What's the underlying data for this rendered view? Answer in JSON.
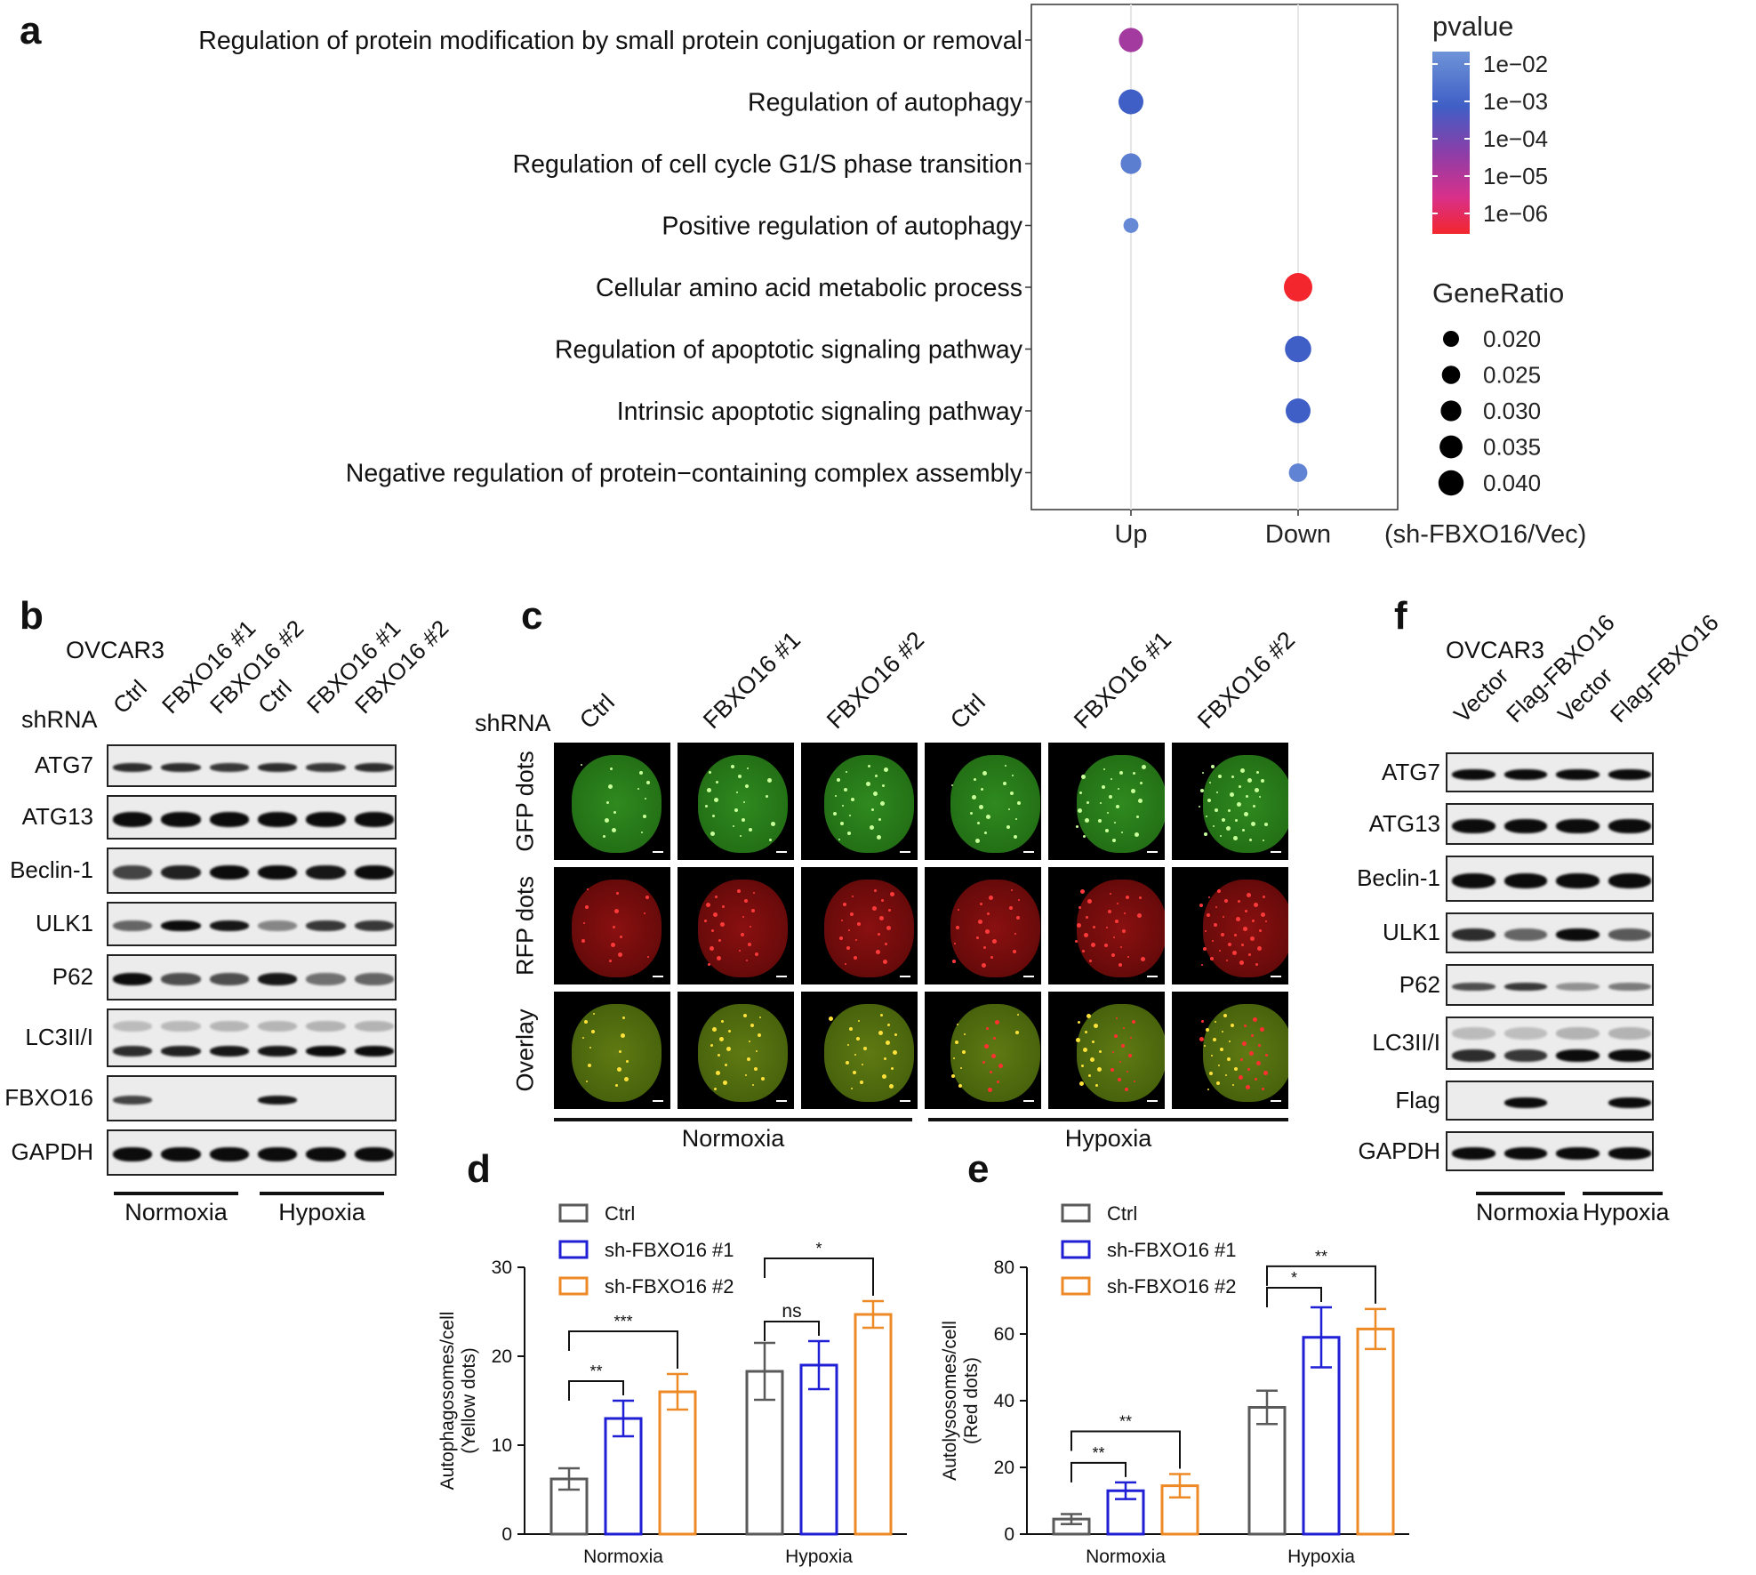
{
  "panel_labels": {
    "a": "a",
    "b": "b",
    "c": "c",
    "d": "d",
    "e": "e",
    "f": "f"
  },
  "panel_a": {
    "x_labels": [
      "Up",
      "Down"
    ],
    "x_axis_label": "(sh-FBXO16/Vec)",
    "legend_pvalue_title": "pvalue",
    "pvalue_ticks": [
      "1e−02",
      "1e−03",
      "1e−04",
      "1e−05",
      "1e−06"
    ],
    "legend_generatio_title": "GeneRatio",
    "generatio_ticks": [
      "0.020",
      "0.025",
      "0.030",
      "0.035",
      "0.040"
    ],
    "colors": {
      "low": "#e8262a",
      "mid": "#8a3ea8",
      "high": "#4e7fd0"
    }
  },
  "chart_data": [
    {
      "type": "scatter",
      "panel": "a",
      "terms": [
        "Regulation of protein modification by small protein conjugation or removal",
        "Regulation of autophagy",
        "Regulation of cell cycle G1/S phase transition",
        "Positive regulation of autophagy",
        "Cellular amino acid metabolic process",
        "Regulation of apoptotic signaling pathway",
        "Intrinsic apoptotic signaling pathway",
        "Negative regulation of protein−containing complex assembly"
      ],
      "groups": [
        "Up",
        "Up",
        "Up",
        "Up",
        "Down",
        "Down",
        "Down",
        "Down"
      ],
      "gene_ratio": [
        0.034,
        0.035,
        0.029,
        0.021,
        0.04,
        0.037,
        0.035,
        0.026
      ],
      "log10_pvalue": [
        -4.3,
        -3.0,
        -2.4,
        -2.2,
        -6.0,
        -3.0,
        -3.0,
        -2.3
      ],
      "x_label": "(sh-FBXO16/Vec)"
    },
    {
      "type": "bar",
      "panel": "d",
      "categories": [
        "Normoxia",
        "Hypoxia"
      ],
      "series": [
        {
          "name": "Ctrl",
          "values": [
            6.2,
            18.3
          ],
          "errors": [
            1.2,
            3.2
          ]
        },
        {
          "name": "sh-FBXO16 #1",
          "values": [
            13.0,
            19.0
          ],
          "errors": [
            2.0,
            2.7
          ]
        },
        {
          "name": "sh-FBXO16 #2",
          "values": [
            16.0,
            24.7
          ],
          "errors": [
            2.0,
            1.5
          ]
        }
      ],
      "ylabel": "Autophagosomes/cell\n(Yellow dots)",
      "ylim": [
        0,
        30
      ],
      "yticks": [
        "0",
        "10",
        "20",
        "30"
      ],
      "significance": [
        {
          "group": "Normoxia",
          "from": 0,
          "to": 1,
          "label": "**"
        },
        {
          "group": "Normoxia",
          "from": 0,
          "to": 2,
          "label": "***"
        },
        {
          "group": "Hypoxia",
          "from": 0,
          "to": 1,
          "label": "ns"
        },
        {
          "group": "Hypoxia",
          "from": 0,
          "to": 2,
          "label": "*"
        }
      ]
    },
    {
      "type": "bar",
      "panel": "e",
      "categories": [
        "Normoxia",
        "Hypoxia"
      ],
      "series": [
        {
          "name": "Ctrl",
          "values": [
            4.5,
            38.0
          ],
          "errors": [
            1.5,
            5.0
          ]
        },
        {
          "name": "sh-FBXO16 #1",
          "values": [
            13.0,
            59.0
          ],
          "errors": [
            2.5,
            9.0
          ]
        },
        {
          "name": "sh-FBXO16 #2",
          "values": [
            14.5,
            61.5
          ],
          "errors": [
            3.5,
            6.0
          ]
        }
      ],
      "ylabel": "Autolysosomes/cell\n(Red dots)",
      "ylim": [
        0,
        80
      ],
      "yticks": [
        "0",
        "20",
        "40",
        "60",
        "80"
      ],
      "significance": [
        {
          "group": "Normoxia",
          "from": 0,
          "to": 1,
          "label": "**"
        },
        {
          "group": "Normoxia",
          "from": 0,
          "to": 2,
          "label": "**"
        },
        {
          "group": "Hypoxia",
          "from": 0,
          "to": 1,
          "label": "*"
        },
        {
          "group": "Hypoxia",
          "from": 0,
          "to": 2,
          "label": "**"
        }
      ]
    }
  ],
  "bar_colors": [
    "#5a5a5a",
    "#1f1fd6",
    "#ee8a26"
  ],
  "panel_b": {
    "cell_line": "OVCAR3",
    "shrna_label": "shRNA",
    "lanes": [
      "Ctrl",
      "FBXO16 #1",
      "FBXO16 #2",
      "Ctrl",
      "FBXO16 #1",
      "FBXO16 #2"
    ],
    "proteins": [
      "ATG7",
      "ATG13",
      "Beclin-1",
      "ULK1",
      "P62",
      "LC3II/I",
      "FBXO16",
      "GAPDH"
    ],
    "conditions": [
      "Normoxia",
      "Hypoxia"
    ]
  },
  "panel_c": {
    "shrna_label": "shRNA",
    "columns": [
      "Ctrl",
      "FBXO16 #1",
      "FBXO16 #2",
      "Ctrl",
      "FBXO16 #1",
      "FBXO16 #2"
    ],
    "rows": [
      "GFP dots",
      "RFP dots",
      "Overlay"
    ],
    "conditions": [
      "Normoxia",
      "Hypoxia"
    ]
  },
  "panel_f": {
    "cell_line": "OVCAR3",
    "lanes": [
      "Vector",
      "Flag-FBXO16",
      "Vector",
      "Flag-FBXO16"
    ],
    "proteins": [
      "ATG7",
      "ATG13",
      "Beclin-1",
      "ULK1",
      "P62",
      "LC3II/I",
      "Flag",
      "GAPDH"
    ],
    "conditions": [
      "Normoxia",
      "Hypoxia"
    ]
  }
}
